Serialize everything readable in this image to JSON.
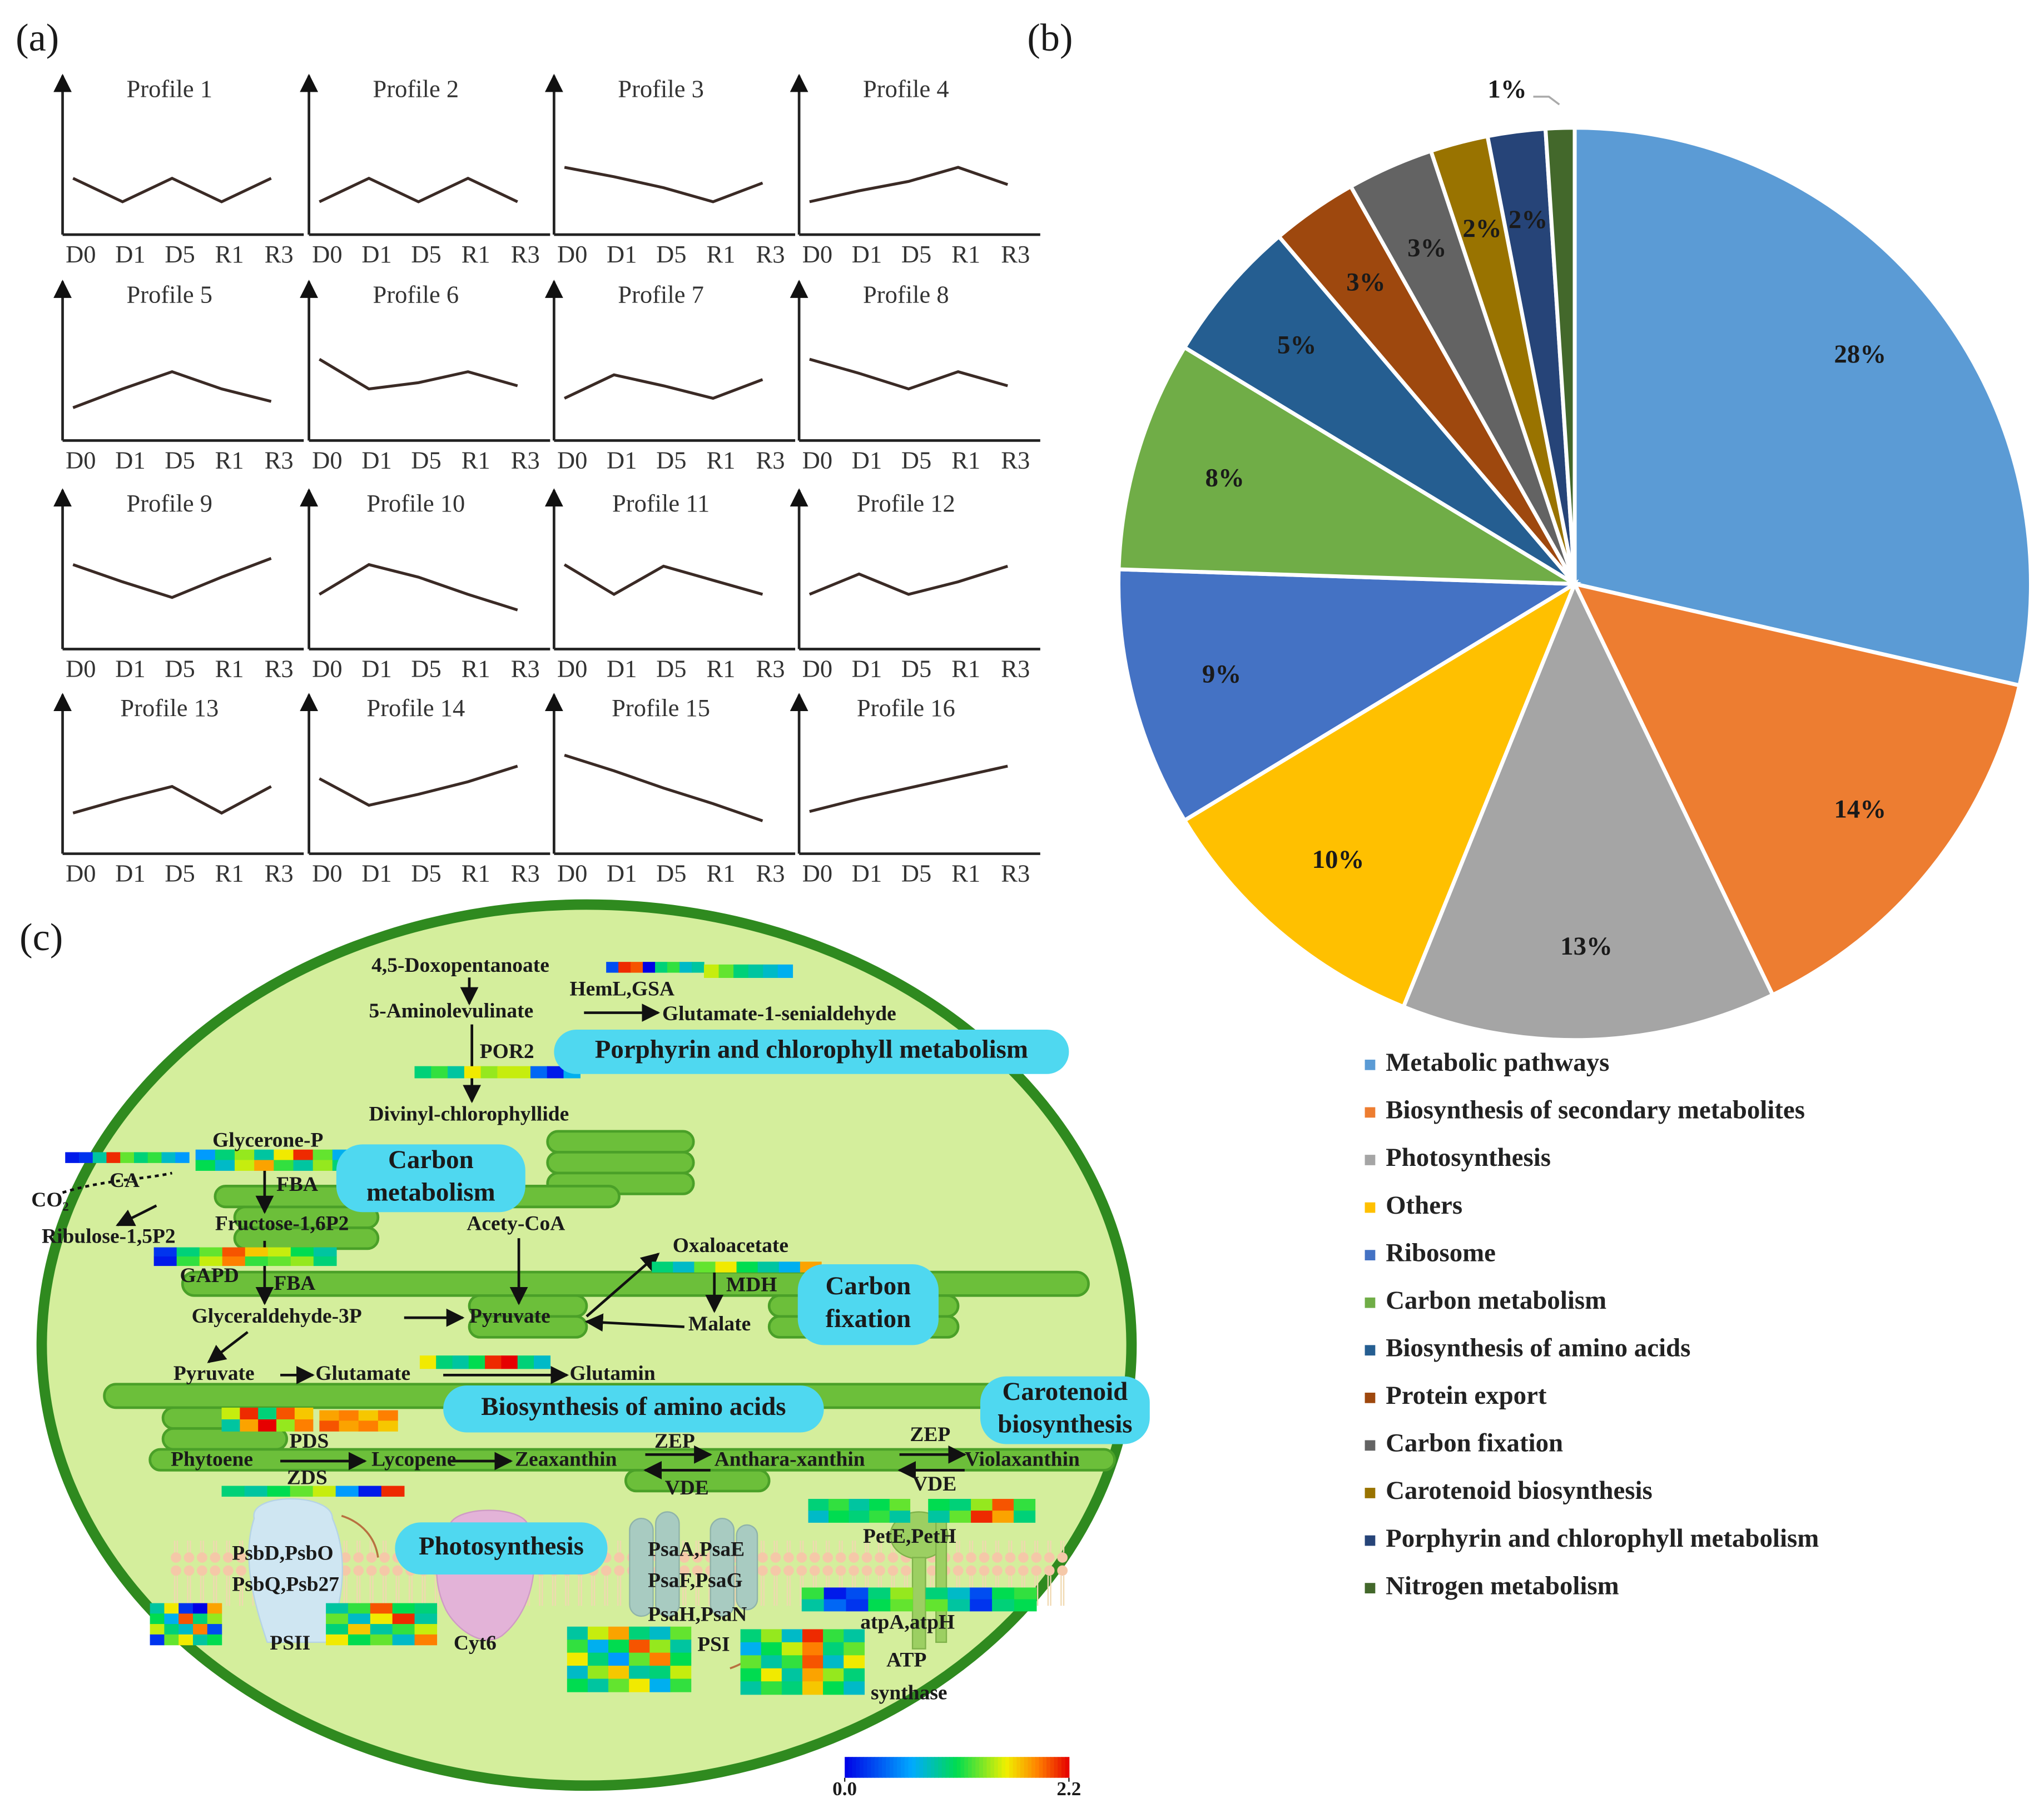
{
  "figure_labels": [
    "(a)",
    "(b)",
    "(c)"
  ],
  "chart_data": [
    {
      "type": "line",
      "categories": [
        "D0",
        "D1",
        "D5",
        "R1",
        "R3"
      ],
      "ylim": [
        0,
        10
      ],
      "color": "#3a2a25",
      "panels": [
        {
          "title": "Profile 1",
          "values": [
            3.6,
            2.1,
            3.6,
            2.1,
            3.6
          ]
        },
        {
          "title": "Profile 2",
          "values": [
            2.1,
            3.6,
            2.1,
            3.6,
            2.1
          ]
        },
        {
          "title": "Profile 3",
          "values": [
            4.3,
            3.7,
            3.0,
            2.1,
            3.3
          ]
        },
        {
          "title": "Profile 4",
          "values": [
            2.1,
            2.8,
            3.4,
            4.3,
            3.2
          ]
        },
        {
          "title": "Profile 5",
          "values": [
            2.1,
            3.3,
            4.4,
            3.3,
            2.5
          ]
        },
        {
          "title": "Profile 6",
          "values": [
            5.2,
            3.3,
            3.7,
            4.4,
            3.5
          ]
        },
        {
          "title": "Profile 7",
          "values": [
            2.7,
            4.2,
            3.5,
            2.7,
            3.9
          ]
        },
        {
          "title": "Profile 8",
          "values": [
            5.2,
            4.3,
            3.3,
            4.4,
            3.5
          ]
        },
        {
          "title": "Profile 9",
          "values": [
            5.4,
            4.3,
            3.3,
            4.6,
            5.8
          ]
        },
        {
          "title": "Profile 10",
          "values": [
            3.5,
            5.4,
            4.6,
            3.5,
            2.5
          ]
        },
        {
          "title": "Profile 11",
          "values": [
            5.4,
            3.5,
            5.3,
            4.4,
            3.5
          ]
        },
        {
          "title": "Profile 12",
          "values": [
            3.5,
            4.8,
            3.5,
            4.3,
            5.3
          ]
        },
        {
          "title": "Profile 13",
          "values": [
            2.6,
            3.5,
            4.3,
            2.6,
            4.3
          ]
        },
        {
          "title": "Profile 14",
          "values": [
            4.8,
            3.1,
            3.8,
            4.6,
            5.6
          ]
        },
        {
          "title": "Profile 15",
          "values": [
            6.3,
            5.3,
            4.2,
            3.2,
            2.1
          ]
        },
        {
          "title": "Profile 16",
          "values": [
            2.7,
            3.5,
            4.2,
            4.9,
            5.6
          ]
        }
      ]
    },
    {
      "type": "pie",
      "categories": [
        "Metabolic pathways",
        "Biosynthesis of secondary metabolites",
        "Photosynthesis",
        "Others",
        "Ribosome",
        "Carbon metabolism",
        "Biosynthesis of amino acids",
        "Protein export",
        "Carbon fixation",
        "Carotenoid biosynthesis",
        "Porphyrin and chlorophyll metabolism",
        "Nitrogen metabolism"
      ],
      "values": [
        28,
        14,
        13,
        10,
        9,
        8,
        5,
        3,
        3,
        2,
        2,
        1
      ],
      "value_labels": [
        "28%",
        "14%",
        "13%",
        "10%",
        "9%",
        "8%",
        "5%",
        "3%",
        "3%",
        "2%",
        "2%",
        "1%"
      ],
      "colors": [
        "#5b9bd5",
        "#ed7d31",
        "#a5a5a5",
        "#ffc000",
        "#4472c4",
        "#70ad47",
        "#255e91",
        "#9e480e",
        "#636363",
        "#997300",
        "#264478",
        "#43682b"
      ],
      "legend": "bottom"
    }
  ],
  "pathway": {
    "labels": [
      "4,5-Doxopentanoate",
      "HemL,GSA",
      "5-Aminolevulinate",
      "Glutamate-1-senialdehyde",
      "POR2",
      "Divinyl-chlorophyllide",
      "Glycerone-P",
      "CA",
      "CO₂",
      "FBA",
      "Ribulose-1,5P2",
      "Fructose-1,6P2",
      "Acety-CoA",
      "Oxaloacetate",
      "GAPD",
      "FBA",
      "MDH",
      "Glyceraldehyde-3P",
      "Pyruvate",
      "Malate",
      "Pyruvate",
      "Glutamate",
      "Glutamin",
      "PDS",
      "Phytoene",
      "Lycopene",
      "Zeaxanthin",
      "ZEP",
      "Anthara-xanthin",
      "ZEP",
      "Violaxanthin",
      "ZDS",
      "VDE",
      "VDE",
      "PsbD,PsbO",
      "PsbQ,Psb27",
      "PsaA,PsaE",
      "PsaF,PsaG",
      "PsaH,PsaN",
      "PetE,PetH",
      "atpA,atpH",
      "PSII",
      "Cyt6",
      "PSI",
      "ATP",
      "synthase"
    ],
    "boxes": [
      {
        "lines": [
          "Porphyrin and chlorophyll metabolism"
        ]
      },
      {
        "lines": [
          "Carbon",
          "metabolism"
        ]
      },
      {
        "lines": [
          "Carbon",
          "fixation"
        ]
      },
      {
        "lines": [
          "Biosynthesis of amino acids"
        ]
      },
      {
        "lines": [
          "Carotenoid",
          "biosynthesis"
        ]
      },
      {
        "lines": [
          "Photosynthesis"
        ]
      }
    ],
    "heatmaps": [
      {
        "values": [
          [
            0.3,
            2.1,
            2.0,
            0.0,
            1.0,
            1.2,
            0.8,
            0.9
          ]
        ]
      },
      {
        "values": [
          [
            1.5,
            1.3,
            1.0,
            0.9,
            0.8,
            0.7
          ]
        ]
      },
      {
        "values": [
          [
            1.0,
            1.2,
            0.9,
            1.6,
            1.4,
            1.5,
            1.5,
            0.4,
            0.1,
            0.7
          ]
        ]
      },
      {
        "values": [
          [
            0.1,
            0.2,
            0.9,
            2.1,
            1.3,
            1.0,
            1.2,
            0.8,
            0.6
          ]
        ]
      },
      {
        "values": [
          [
            0.6,
            1.0,
            1.4,
            0.9,
            1.6,
            2.1,
            1.3,
            0.7
          ],
          [
            1.1,
            0.8,
            1.5,
            1.8,
            1.2,
            0.9,
            1.4,
            1.0
          ]
        ]
      },
      {
        "values": [
          [
            0.2,
            1.0,
            1.3,
            2.0,
            1.7,
            1.5,
            1.1,
            0.9
          ],
          [
            0.1,
            1.2,
            1.5,
            1.9,
            1.2,
            1.3,
            1.4,
            1.0
          ]
        ]
      },
      {
        "values": [
          [
            1.6,
            1.0,
            0.9,
            1.1,
            2.1,
            2.2,
            1.0,
            0.8
          ]
        ]
      },
      {
        "values": [
          [
            1.0,
            0.8,
            1.3,
            1.6,
            1.1,
            0.9,
            0.7,
            1.8
          ]
        ]
      },
      {
        "values": [
          [
            1.5,
            2.1,
            1.0,
            2.0,
            1.7
          ],
          [
            0.9,
            1.8,
            2.2,
            1.4,
            1.9
          ]
        ]
      },
      {
        "values": [
          [
            1.8,
            1.9,
            1.7,
            1.9
          ],
          [
            2.0,
            1.8,
            1.9,
            1.7
          ]
        ]
      },
      {
        "values": [
          [
            1.0,
            0.9,
            1.1,
            1.3,
            1.5,
            0.6,
            0.1,
            2.1
          ]
        ]
      },
      {
        "values": [
          [
            0.9,
            1.6,
            0.2,
            0.0,
            1.8
          ],
          [
            1.1,
            0.7,
            2.0,
            1.0,
            1.4
          ],
          [
            1.5,
            1.0,
            0.8,
            1.9,
            0.3
          ],
          [
            0.2,
            1.3,
            1.6,
            0.9,
            1.1
          ]
        ]
      },
      {
        "values": [
          [
            0.9,
            1.2,
            2.0,
            1.1,
            1.0
          ],
          [
            1.3,
            0.8,
            1.6,
            2.1,
            0.9
          ],
          [
            1.0,
            1.7,
            0.9,
            1.2,
            1.5
          ],
          [
            1.6,
            1.1,
            1.3,
            0.8,
            1.9
          ]
        ]
      },
      {
        "values": [
          [
            0.9,
            1.5,
            1.8,
            1.0,
            0.8,
            1.3
          ],
          [
            1.2,
            0.7,
            1.1,
            2.0,
            1.4,
            0.9
          ],
          [
            1.6,
            1.0,
            0.6,
            1.3,
            1.9,
            1.1
          ],
          [
            0.8,
            1.4,
            1.7,
            0.9,
            1.0,
            1.5
          ],
          [
            1.1,
            0.9,
            1.3,
            1.6,
            0.7,
            1.2
          ]
        ]
      },
      {
        "values": [
          [
            1.0,
            1.4,
            0.8,
            2.1,
            1.2,
            0.9
          ],
          [
            0.7,
            1.1,
            1.5,
            1.9,
            1.0,
            1.3
          ],
          [
            1.3,
            0.9,
            1.2,
            2.0,
            0.8,
            1.6
          ],
          [
            1.1,
            1.6,
            0.9,
            1.8,
            1.4,
            1.0
          ],
          [
            0.9,
            1.2,
            1.0,
            1.7,
            1.1,
            0.8
          ]
        ]
      },
      {
        "values": [
          [
            1.2,
            0.1,
            0.3,
            1.0,
            1.4
          ],
          [
            0.9,
            0.4,
            0.2,
            1.1,
            1.3
          ]
        ]
      },
      {
        "values": [
          [
            1.0,
            0.8,
            0.3,
            1.1,
            1.2
          ],
          [
            1.3,
            0.9,
            0.2,
            1.0,
            1.1
          ]
        ]
      },
      {
        "values": [
          [
            1.0,
            1.2,
            0.9,
            1.1,
            1.3
          ],
          [
            0.8,
            1.1,
            1.0,
            1.2,
            0.9
          ]
        ]
      },
      {
        "values": [
          [
            1.1,
            1.0,
            1.4,
            2.0,
            1.2
          ],
          [
            0.9,
            1.3,
            2.1,
            1.8,
            1.0
          ]
        ]
      }
    ],
    "colorbar": {
      "lim": [
        0,
        2.2
      ],
      "ticks": [
        {
          "value": 0,
          "label": "0.0"
        },
        2.2
      ]
    }
  }
}
